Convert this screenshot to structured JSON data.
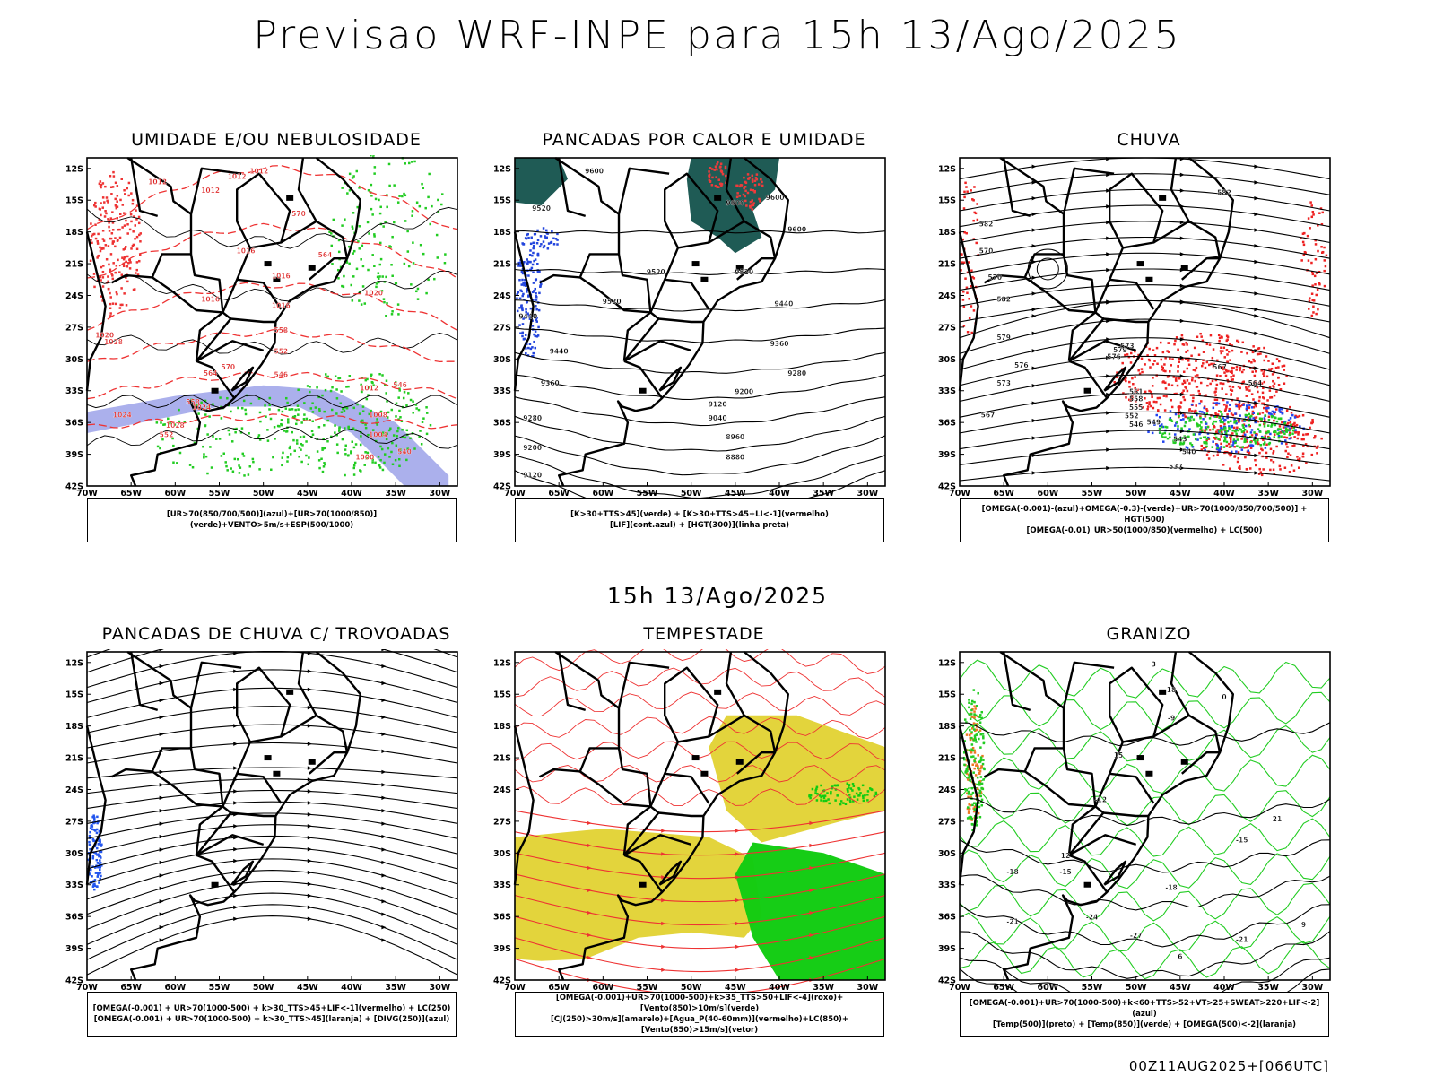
{
  "title": "Previsao WRF-INPE  para 15h 13/Ago/2025",
  "mid_time": "15h 13/Ago/2025",
  "run_id": "00Z11AUG2025+[066UTC]",
  "lat_labels": [
    "12S",
    "15S",
    "18S",
    "21S",
    "24S",
    "27S",
    "30S",
    "33S",
    "36S",
    "39S",
    "42S"
  ],
  "lon_labels": [
    "70W",
    "65W",
    "60W",
    "55W",
    "50W",
    "45W",
    "40W",
    "35W",
    "30W"
  ],
  "panels": [
    {
      "title": "UMIDADE E/OU NEBULOSIDADE",
      "legend": [
        "[UR>70(850/700/500)](azul)+[UR>70(1000/850)](verde)+VENTO>5m/s+ESP(500/1000)"
      ],
      "contour_labels": [
        "1012",
        "1012",
        "1012",
        "1012",
        "1016",
        "1016",
        "1016",
        "1016",
        "1020",
        "1020",
        "1024",
        "1024",
        "1028",
        "1028",
        "1012",
        "1008",
        "1004",
        "1000",
        "570",
        "564",
        "558",
        "552",
        "546",
        "570",
        "564",
        "558",
        "552",
        "546",
        "540"
      ],
      "colors": {
        "humid_upper": "#8f95e6",
        "humid_lower": "#22cc22",
        "thickness": "#ee3333"
      }
    },
    {
      "title": "PANCADAS POR CALOR E UMIDADE",
      "legend": [
        "[K>30+TTS>45](verde) + [K>30+TTS>45+LI<-1](vermelho)",
        "[LIF](cont.azul) + [HGT(300)](linha preta)"
      ],
      "contour_labels": [
        "9600",
        "9600",
        "9600",
        "9520",
        "9520",
        "9520",
        "9440",
        "9440",
        "9360",
        "9360",
        "9280",
        "9280",
        "9200",
        "9200",
        "9120",
        "9120",
        "9040",
        "8960",
        "8880",
        "9600",
        "9520",
        "9440"
      ],
      "colors": {
        "green": "#1f5b55",
        "red": "#ee3b3b",
        "lif": "#2244dd"
      }
    },
    {
      "title": "CHUVA",
      "legend": [
        "[OMEGA(-0.001)-(azul)+OMEGA(-0.3)-(verde)+UR>70(1000/850/700/500)] + HGT(500)",
        "[OMEGA(-0.01)_UR>50(1000/850)(vermelho) + LC(500)"
      ],
      "contour_labels": [
        "582",
        "582",
        "582",
        "579",
        "579",
        "576",
        "576",
        "573",
        "573",
        "570",
        "570",
        "567",
        "567",
        "564",
        "561",
        "558",
        "555",
        "552",
        "549",
        "546",
        "543",
        "540",
        "537"
      ],
      "colors": {
        "blue": "#2244ee",
        "green": "#22cc22",
        "red": "#ee2222"
      }
    },
    {
      "title": "PANCADAS DE CHUVA C/ TROVOADAS",
      "legend": [
        "[OMEGA(-0.001) + UR>70(1000-500) + k>30_TTS>45+LIF<-1](vermelho) + LC(250)",
        "[OMEGA(-0.001) + UR>70(1000-500) + k>30_TTS>45](laranja) + [DIVG(250)](azul)"
      ],
      "colors": {
        "blue": "#2255ee"
      }
    },
    {
      "title": "TEMPESTADE",
      "legend": [
        "[OMEGA(-0.001)+UR>70(1000-500)+k>35_TTS>50+LIF<-4](roxo)+[Vento(850)>10m/s](verde)",
        "[CJ(250)>30m/s](amarelo)+[Agua_P(40-60mm)](vermelho)+LC(850)+[Vento(850)>15m/s](vetor)"
      ],
      "colors": {
        "yellow": "#e2d232",
        "green": "#11cc11",
        "red": "#ee3333"
      }
    },
    {
      "title": "GRANIZO",
      "legend": [
        "[OMEGA(-0.001)+UR>70(1000-500)+k<60+TTS>52+VT>25+SWEAT>220+LIF<-2](azul)",
        "[Temp(500)](preto) + [Temp(850)](verde) + [OMEGA(500)<-2](laranja)"
      ],
      "contour_labels": [
        "-9",
        "-12",
        "-15",
        "-15",
        "-18",
        "-18",
        "-21",
        "-21",
        "-24",
        "-27",
        "21",
        "18",
        "15",
        "12",
        "9",
        "6",
        "3",
        "0"
      ],
      "colors": {
        "green": "#22cc22",
        "orange": "#ee7722"
      }
    }
  ]
}
